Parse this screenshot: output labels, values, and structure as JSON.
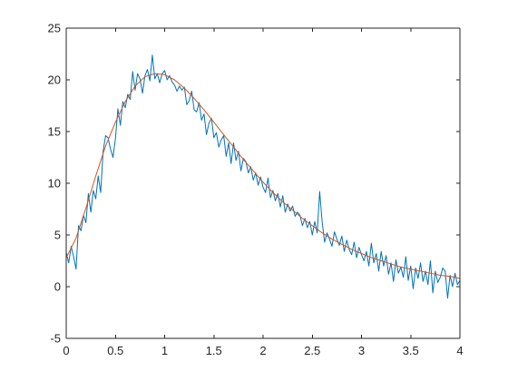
{
  "chart_data": {
    "type": "line",
    "title": "",
    "xlabel": "",
    "ylabel": "",
    "xlim": [
      0,
      4
    ],
    "ylim": [
      -5,
      25
    ],
    "x_ticks": [
      0,
      0.5,
      1,
      1.5,
      2,
      2.5,
      3,
      3.5,
      4
    ],
    "x_tick_labels": [
      "0",
      "0.5",
      "1",
      "1.5",
      "2",
      "2.5",
      "3",
      "3.5",
      "4"
    ],
    "y_ticks": [
      -5,
      0,
      5,
      10,
      15,
      20,
      25
    ],
    "y_tick_labels": [
      "-5",
      "0",
      "5",
      "10",
      "15",
      "20",
      "25"
    ],
    "grid": false,
    "box": true,
    "series": [
      {
        "color": "#0072BD",
        "style": "noisy-data",
        "x": [
          0,
          0.025,
          0.05,
          0.075,
          0.1,
          0.125,
          0.15,
          0.175,
          0.2,
          0.225,
          0.25,
          0.275,
          0.3,
          0.325,
          0.35,
          0.375,
          0.4,
          0.425,
          0.45,
          0.475,
          0.5,
          0.525,
          0.55,
          0.575,
          0.6,
          0.625,
          0.65,
          0.675,
          0.7,
          0.725,
          0.75,
          0.775,
          0.8,
          0.825,
          0.85,
          0.875,
          0.9,
          0.925,
          0.95,
          0.975,
          1.0,
          1.025,
          1.05,
          1.075,
          1.1,
          1.125,
          1.15,
          1.175,
          1.2,
          1.225,
          1.25,
          1.275,
          1.3,
          1.325,
          1.35,
          1.375,
          1.4,
          1.425,
          1.45,
          1.475,
          1.5,
          1.525,
          1.55,
          1.575,
          1.6,
          1.625,
          1.65,
          1.675,
          1.7,
          1.725,
          1.75,
          1.775,
          1.8,
          1.825,
          1.85,
          1.875,
          1.9,
          1.925,
          1.95,
          1.975,
          2.0,
          2.025,
          2.05,
          2.075,
          2.1,
          2.125,
          2.15,
          2.175,
          2.2,
          2.225,
          2.25,
          2.275,
          2.3,
          2.325,
          2.35,
          2.375,
          2.4,
          2.425,
          2.45,
          2.475,
          2.5,
          2.525,
          2.55,
          2.575,
          2.6,
          2.625,
          2.65,
          2.675,
          2.7,
          2.725,
          2.75,
          2.775,
          2.8,
          2.825,
          2.85,
          2.875,
          2.9,
          2.925,
          2.95,
          2.975,
          3.0,
          3.025,
          3.05,
          3.075,
          3.1,
          3.125,
          3.15,
          3.175,
          3.2,
          3.225,
          3.25,
          3.275,
          3.3,
          3.325,
          3.35,
          3.375,
          3.4,
          3.425,
          3.45,
          3.475,
          3.5,
          3.525,
          3.55,
          3.575,
          3.6,
          3.625,
          3.65,
          3.675,
          3.7,
          3.725,
          3.75,
          3.775,
          3.8,
          3.825,
          3.85,
          3.875,
          3.9,
          3.925,
          3.95,
          3.975,
          4.0
        ],
        "y": [
          3.3,
          2.3,
          3.9,
          2.9,
          1.7,
          5.9,
          5.4,
          6.9,
          6.2,
          9.0,
          7.2,
          9.3,
          8.5,
          10.7,
          9.1,
          13.1,
          14.6,
          14.4,
          13.3,
          12.5,
          14.3,
          17.2,
          15.6,
          17.9,
          17.3,
          18.6,
          18.1,
          20.8,
          19.0,
          20.6,
          20.1,
          18.7,
          20.4,
          21.0,
          19.9,
          22.4,
          20.1,
          20.6,
          19.7,
          20.6,
          20.9,
          20.0,
          20.4,
          19.8,
          19.5,
          18.9,
          19.4,
          19.0,
          19.3,
          17.6,
          18.0,
          18.9,
          17.1,
          16.9,
          17.8,
          16.1,
          16.7,
          14.7,
          15.8,
          16.3,
          14.4,
          14.9,
          13.5,
          14.2,
          14.6,
          12.6,
          13.9,
          11.9,
          13.9,
          12.2,
          13.1,
          11.2,
          12.4,
          12.1,
          11.0,
          11.6,
          10.3,
          11.0,
          9.8,
          10.6,
          9.6,
          9.1,
          10.5,
          8.6,
          9.3,
          8.3,
          9.0,
          7.7,
          8.8,
          7.2,
          8.0,
          7.3,
          7.8,
          6.8,
          7.2,
          6.9,
          5.9,
          6.6,
          5.7,
          6.3,
          5.0,
          6.3,
          5.2,
          9.2,
          6.3,
          4.3,
          5.2,
          4.6,
          3.9,
          5.3,
          4.6,
          4.0,
          4.9,
          3.4,
          4.5,
          3.6,
          3.1,
          4.3,
          2.8,
          3.8,
          3.1,
          2.5,
          3.4,
          2.0,
          4.2,
          2.3,
          3.2,
          1.5,
          3.4,
          2.0,
          3.0,
          1.2,
          2.3,
          0.5,
          2.6,
          1.3,
          1.9,
          0.9,
          2.9,
          0.6,
          2.0,
          -0.2,
          1.8,
          0.8,
          2.3,
          0.5,
          1.5,
          0.2,
          2.5,
          -0.6,
          1.5,
          0.4,
          0.9,
          1.8,
          1.5,
          -1.1,
          1.1,
          0.0,
          1.3,
          0.2,
          0.6
        ]
      },
      {
        "color": "#D95319",
        "style": "fit",
        "x": [
          0,
          0.1,
          0.2,
          0.3,
          0.4,
          0.5,
          0.6,
          0.7,
          0.8,
          0.9,
          1.0,
          1.1,
          1.2,
          1.3,
          1.4,
          1.5,
          1.6,
          1.7,
          1.8,
          1.9,
          2.0,
          2.1,
          2.2,
          2.3,
          2.4,
          2.5,
          2.6,
          2.7,
          2.8,
          2.9,
          3.0,
          3.1,
          3.2,
          3.3,
          3.4,
          3.5,
          3.6,
          3.7,
          3.8,
          3.9,
          4.0
        ],
        "y": [
          2.8,
          4.7,
          7.6,
          10.7,
          13.6,
          15.9,
          17.9,
          19.4,
          20.3,
          20.6,
          20.5,
          20.0,
          19.2,
          18.2,
          17.1,
          15.9,
          14.7,
          13.5,
          12.3,
          11.2,
          10.1,
          9.1,
          8.2,
          7.4,
          6.6,
          5.9,
          5.2,
          4.6,
          4.1,
          3.6,
          3.2,
          2.8,
          2.5,
          2.2,
          1.9,
          1.7,
          1.5,
          1.3,
          1.1,
          1.0,
          0.8
        ]
      }
    ]
  }
}
